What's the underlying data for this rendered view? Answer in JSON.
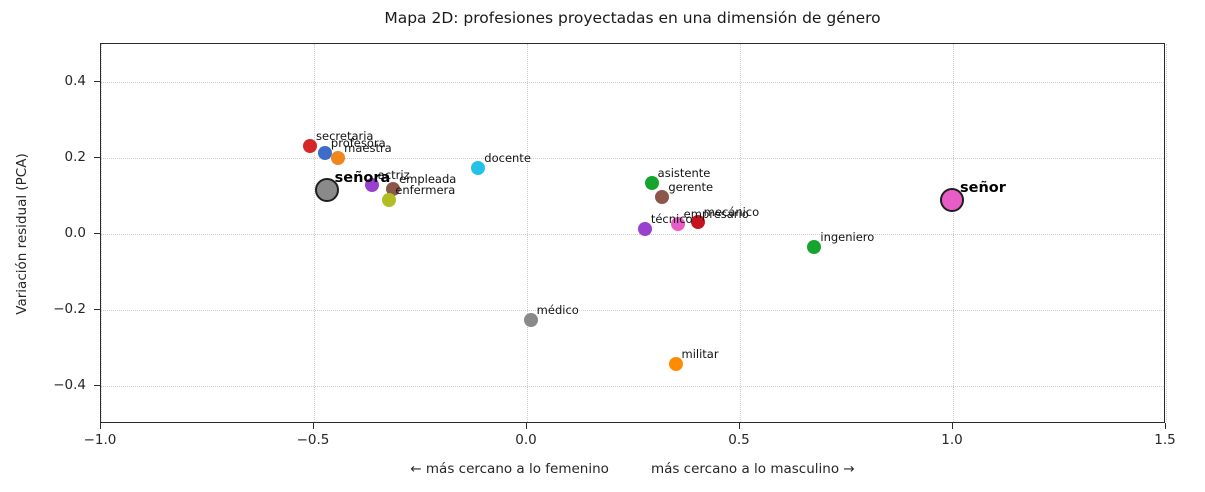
{
  "chart_data": {
    "type": "scatter",
    "title": "Mapa 2D: profesiones proyectadas en una dimensión de género",
    "ylabel": "Variación residual (PCA)",
    "xlabel_left": "← más cercano a lo femenino",
    "xlabel_right": "más cercano a lo masculino →",
    "xlim": [
      -1.0,
      1.5
    ],
    "ylim": [
      -0.5,
      0.5
    ],
    "grid": true,
    "grid_style": "dotted",
    "xticks": [
      -1.0,
      -0.5,
      0.0,
      0.5,
      1.0,
      1.5
    ],
    "xtick_labels": [
      "−1.0",
      "−0.5",
      "0.0",
      "0.5",
      "1.0",
      "1.5"
    ],
    "yticks": [
      0.4,
      0.2,
      0.0,
      -0.2,
      -0.4
    ],
    "ytick_labels": [
      "0.4",
      "0.2",
      "0.0",
      "−0.2",
      "−0.4"
    ],
    "points": [
      {
        "label": "secretaria",
        "x": -0.507,
        "y": 0.228,
        "color": "#d62728",
        "size": "normal",
        "bold": false
      },
      {
        "label": "profesora",
        "x": -0.472,
        "y": 0.21,
        "color": "#3d6dc9",
        "size": "normal",
        "bold": false
      },
      {
        "label": "maestra",
        "x": -0.441,
        "y": 0.197,
        "color": "#f0871e",
        "size": "normal",
        "bold": false
      },
      {
        "label": "señora",
        "x": -0.468,
        "y": 0.112,
        "color": "#8a8a8a",
        "size": "large",
        "bold": true
      },
      {
        "label": "actriz",
        "x": -0.362,
        "y": 0.127,
        "color": "#9a40cf",
        "size": "normal",
        "bold": false
      },
      {
        "label": "empleada",
        "x": -0.312,
        "y": 0.115,
        "color": "#8c564b",
        "size": "normal",
        "bold": false
      },
      {
        "label": "enfermera",
        "x": -0.321,
        "y": 0.088,
        "color": "#b1bd22",
        "size": "normal",
        "bold": false
      },
      {
        "label": "docente",
        "x": -0.112,
        "y": 0.172,
        "color": "#24c2e8",
        "size": "normal",
        "bold": false
      },
      {
        "label": "asistente",
        "x": 0.295,
        "y": 0.132,
        "color": "#17a42e",
        "size": "normal",
        "bold": false
      },
      {
        "label": "gerente",
        "x": 0.32,
        "y": 0.095,
        "color": "#8c564b",
        "size": "normal",
        "bold": false
      },
      {
        "label": "técnico",
        "x": 0.279,
        "y": 0.01,
        "color": "#9a40cf",
        "size": "normal",
        "bold": false
      },
      {
        "label": "empresario",
        "x": 0.356,
        "y": 0.024,
        "color": "#e85cc5",
        "size": "normal",
        "bold": false
      },
      {
        "label": "mecánico",
        "x": 0.403,
        "y": 0.028,
        "color": "#c41420",
        "size": "normal",
        "bold": false
      },
      {
        "label": "ingeniero",
        "x": 0.677,
        "y": -0.037,
        "color": "#17a42e",
        "size": "normal",
        "bold": false
      },
      {
        "label": "médico",
        "x": 0.011,
        "y": -0.23,
        "color": "#8a8a8a",
        "size": "normal",
        "bold": false
      },
      {
        "label": "militar",
        "x": 0.351,
        "y": -0.344,
        "color": "#ff8c00",
        "size": "normal",
        "bold": false
      },
      {
        "label": "señor",
        "x": 1.0,
        "y": 0.086,
        "color": "#e85cc5",
        "size": "large",
        "bold": true
      }
    ],
    "colors": {
      "spine": "#2b2b2b",
      "grid": "#cfcfcf",
      "text": "#262626",
      "large_point_edge": "#1f1f1f"
    }
  }
}
